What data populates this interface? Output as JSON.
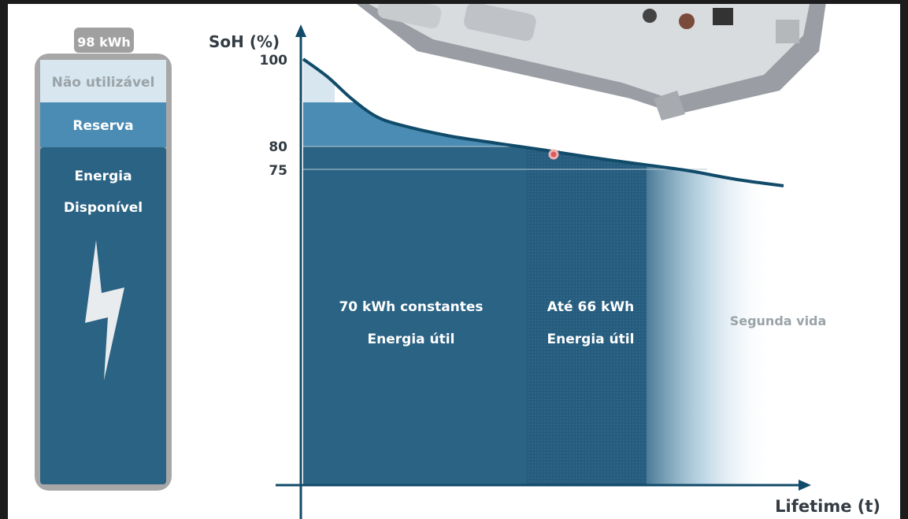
{
  "battery": {
    "capacity_label": "98 kWh",
    "segments": {
      "unusable": "Não utilizável",
      "reserve": "Reserva",
      "available_line1": "Energia",
      "available_line2": "Disponível"
    }
  },
  "chart": {
    "y_axis_label": "SoH (%)",
    "x_axis_label": "Lifetime (t)",
    "y_ticks": [
      "100",
      "80",
      "75"
    ],
    "zones": {
      "constant_line1": "70 kWh constantes",
      "constant_line2": "Energia útil",
      "upto_line1": "Até 66 kWh",
      "upto_line2": "Energia útil",
      "second_life": "Segunda vida"
    }
  },
  "chart_data": {
    "type": "line",
    "ylabel": "SoH (%)",
    "xlabel": "Lifetime (t)",
    "y_ticks": [
      100,
      80,
      75
    ],
    "series": [
      {
        "points": [
          [
            0,
            100
          ],
          [
            0.05,
            96
          ],
          [
            0.1,
            91
          ],
          [
            0.15,
            87
          ],
          [
            0.2,
            85
          ],
          [
            0.3,
            82.5
          ],
          [
            0.4,
            80.8
          ],
          [
            0.5,
            79.2
          ],
          [
            0.6,
            77.5
          ],
          [
            0.7,
            76
          ],
          [
            0.8,
            74.5
          ],
          [
            0.9,
            72.5
          ],
          [
            1.0,
            71
          ]
        ]
      }
    ],
    "reference_lines": [
      80,
      75
    ],
    "colors": {
      "curve": "#114b6a",
      "constant_zone": "#2b6384",
      "upto_zone": "#265a7a",
      "reserve": "#4b8cb4",
      "unusable": "#d7e6ef"
    }
  }
}
